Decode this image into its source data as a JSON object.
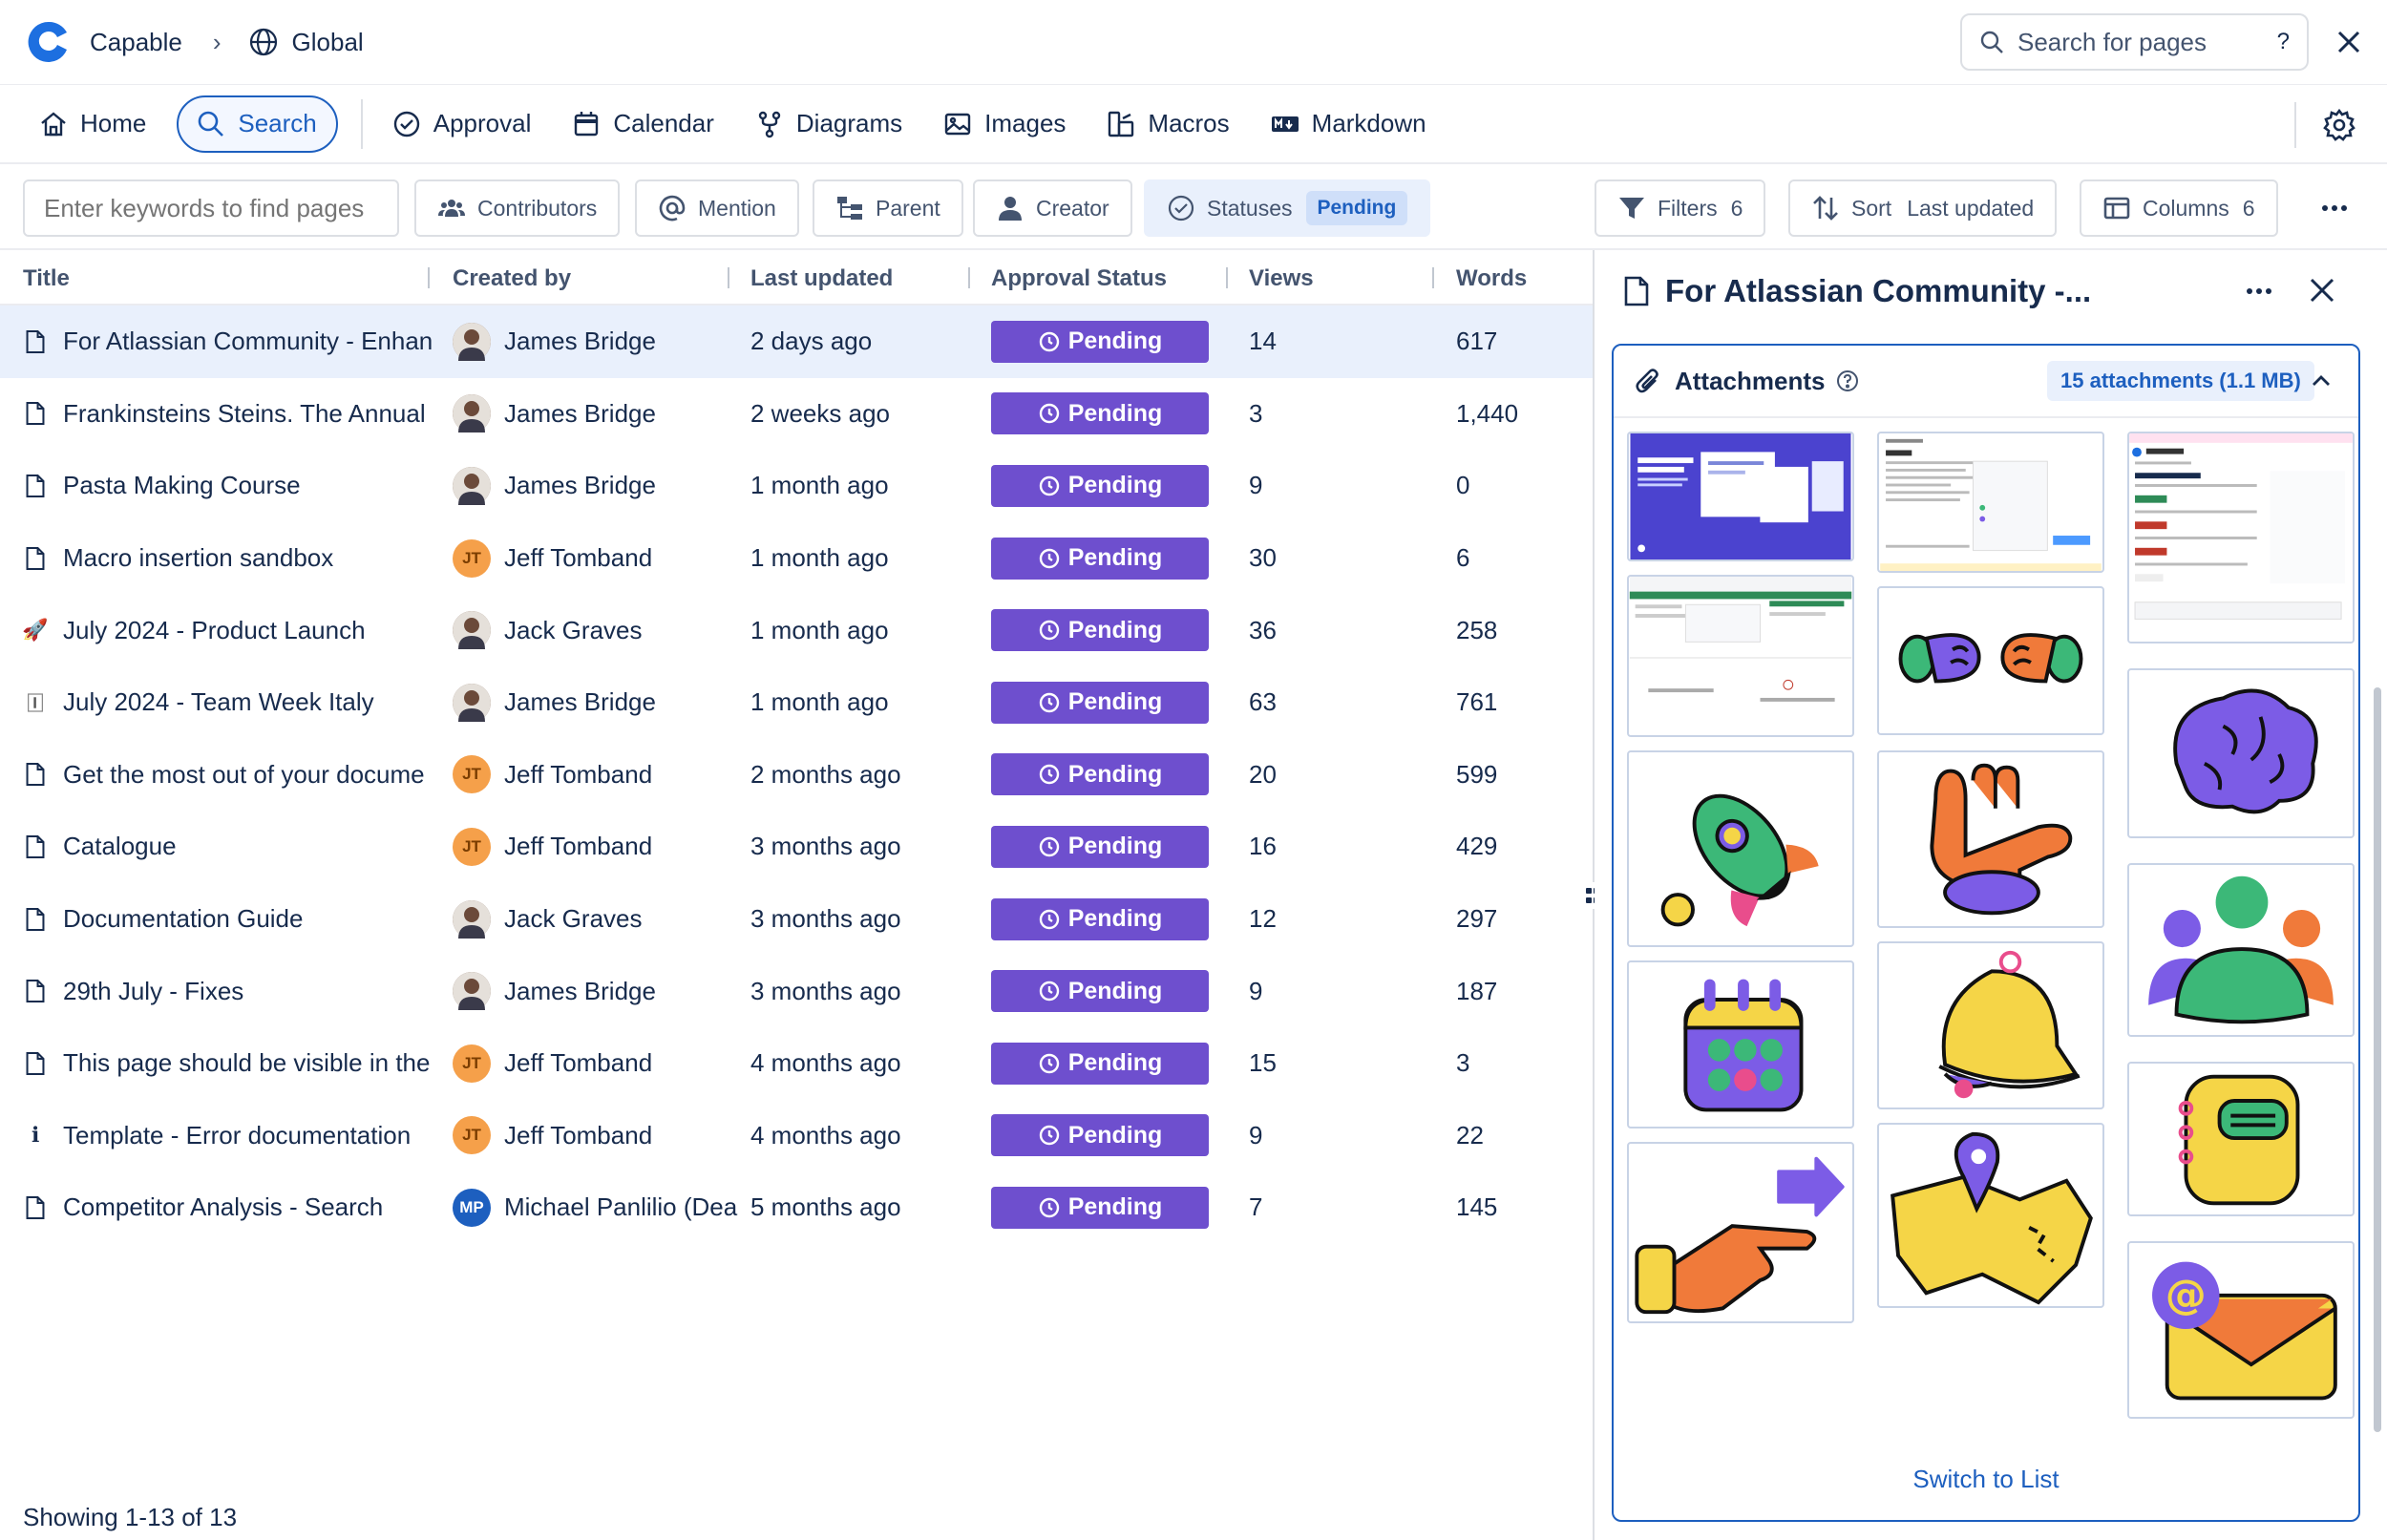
{
  "header": {
    "app_name": "Capable",
    "space_name": "Global",
    "search_placeholder": "Search for pages",
    "help_label": "?"
  },
  "nav": {
    "items": [
      {
        "label": "Home",
        "icon": "home-icon"
      },
      {
        "label": "Search",
        "icon": "search-icon",
        "active": true
      },
      {
        "label": "Approval",
        "icon": "check-circle-icon"
      },
      {
        "label": "Calendar",
        "icon": "calendar-icon"
      },
      {
        "label": "Diagrams",
        "icon": "diagram-icon"
      },
      {
        "label": "Images",
        "icon": "image-icon"
      },
      {
        "label": "Macros",
        "icon": "macro-icon"
      },
      {
        "label": "Markdown",
        "icon": "markdown-icon"
      }
    ]
  },
  "filters": {
    "keyword_placeholder": "Enter keywords to find pages",
    "contributors": "Contributors",
    "mention": "Mention",
    "parent": "Parent",
    "creator": "Creator",
    "statuses": "Statuses",
    "statuses_value": "Pending",
    "filters": "Filters",
    "filters_count": "6",
    "sort": "Sort",
    "sort_value": "Last updated",
    "columns": "Columns",
    "columns_count": "6"
  },
  "table": {
    "columns": [
      "Title",
      "Created by",
      "Last updated",
      "Approval Status",
      "Views",
      "Words"
    ],
    "rows": [
      {
        "title": "For Atlassian Community - Enhan",
        "icon": "page-icon",
        "creator": "James Bridge",
        "avatar": "photo",
        "updated": "2 days ago",
        "status": "Pending",
        "views": "14",
        "words": "617",
        "selected": true
      },
      {
        "title": "Frankinsteins Steins. The Annual",
        "icon": "page-icon",
        "creator": "James Bridge",
        "avatar": "photo",
        "updated": "2 weeks ago",
        "status": "Pending",
        "views": "3",
        "words": "1,440"
      },
      {
        "title": "Pasta Making Course",
        "icon": "page-icon",
        "creator": "James Bridge",
        "avatar": "photo",
        "updated": "1 month ago",
        "status": "Pending",
        "views": "9",
        "words": "0"
      },
      {
        "title": "Macro insertion sandbox",
        "icon": "page-icon",
        "creator": "Jeff Tomband",
        "avatar": "JT",
        "updated": "1 month ago",
        "status": "Pending",
        "views": "30",
        "words": "6"
      },
      {
        "title": "July 2024 - Product Launch",
        "icon": "rocket-emoji-icon",
        "creator": "Jack Graves",
        "avatar": "photo",
        "updated": "1 month ago",
        "status": "Pending",
        "views": "36",
        "words": "258"
      },
      {
        "title": "July 2024 - Team Week Italy",
        "icon": "flag-emoji-icon",
        "creator": "James Bridge",
        "avatar": "photo",
        "updated": "1 month ago",
        "status": "Pending",
        "views": "63",
        "words": "761"
      },
      {
        "title": "Get the most out of your docume",
        "icon": "page-icon",
        "creator": "Jeff Tomband",
        "avatar": "JT",
        "updated": "2 months ago",
        "status": "Pending",
        "views": "20",
        "words": "599"
      },
      {
        "title": "Catalogue",
        "icon": "page-icon",
        "creator": "Jeff Tomband",
        "avatar": "JT",
        "updated": "3 months ago",
        "status": "Pending",
        "views": "16",
        "words": "429"
      },
      {
        "title": "Documentation Guide",
        "icon": "page-icon",
        "creator": "Jack Graves",
        "avatar": "photo",
        "updated": "3 months ago",
        "status": "Pending",
        "views": "12",
        "words": "297"
      },
      {
        "title": "29th July - Fixes",
        "icon": "page-icon",
        "creator": "James Bridge",
        "avatar": "photo",
        "updated": "3 months ago",
        "status": "Pending",
        "views": "9",
        "words": "187"
      },
      {
        "title": "This page should be visible in the",
        "icon": "page-icon",
        "creator": "Jeff Tomband",
        "avatar": "JT",
        "updated": "4 months ago",
        "status": "Pending",
        "views": "15",
        "words": "3"
      },
      {
        "title": "Template - Error documentation",
        "icon": "info-icon",
        "creator": "Jeff Tomband",
        "avatar": "JT",
        "updated": "4 months ago",
        "status": "Pending",
        "views": "9",
        "words": "22"
      },
      {
        "title": "Competitor Analysis - Search",
        "icon": "page-icon",
        "creator": "Michael Panlilio (Dea",
        "avatar": "MP",
        "updated": "5 months ago",
        "status": "Pending",
        "views": "7",
        "words": "145"
      }
    ],
    "showing": "Showing 1-13 of 13"
  },
  "panel": {
    "title": "For Atlassian Community -...",
    "attachments_title": "Attachments",
    "attachments_count": "15 attachments (1.1 MB)",
    "switch_label": "Switch to List"
  },
  "colors": {
    "accent": "#1d5fbf",
    "status_pending": "#6e4fce",
    "selected_row": "#e9f0fc"
  }
}
